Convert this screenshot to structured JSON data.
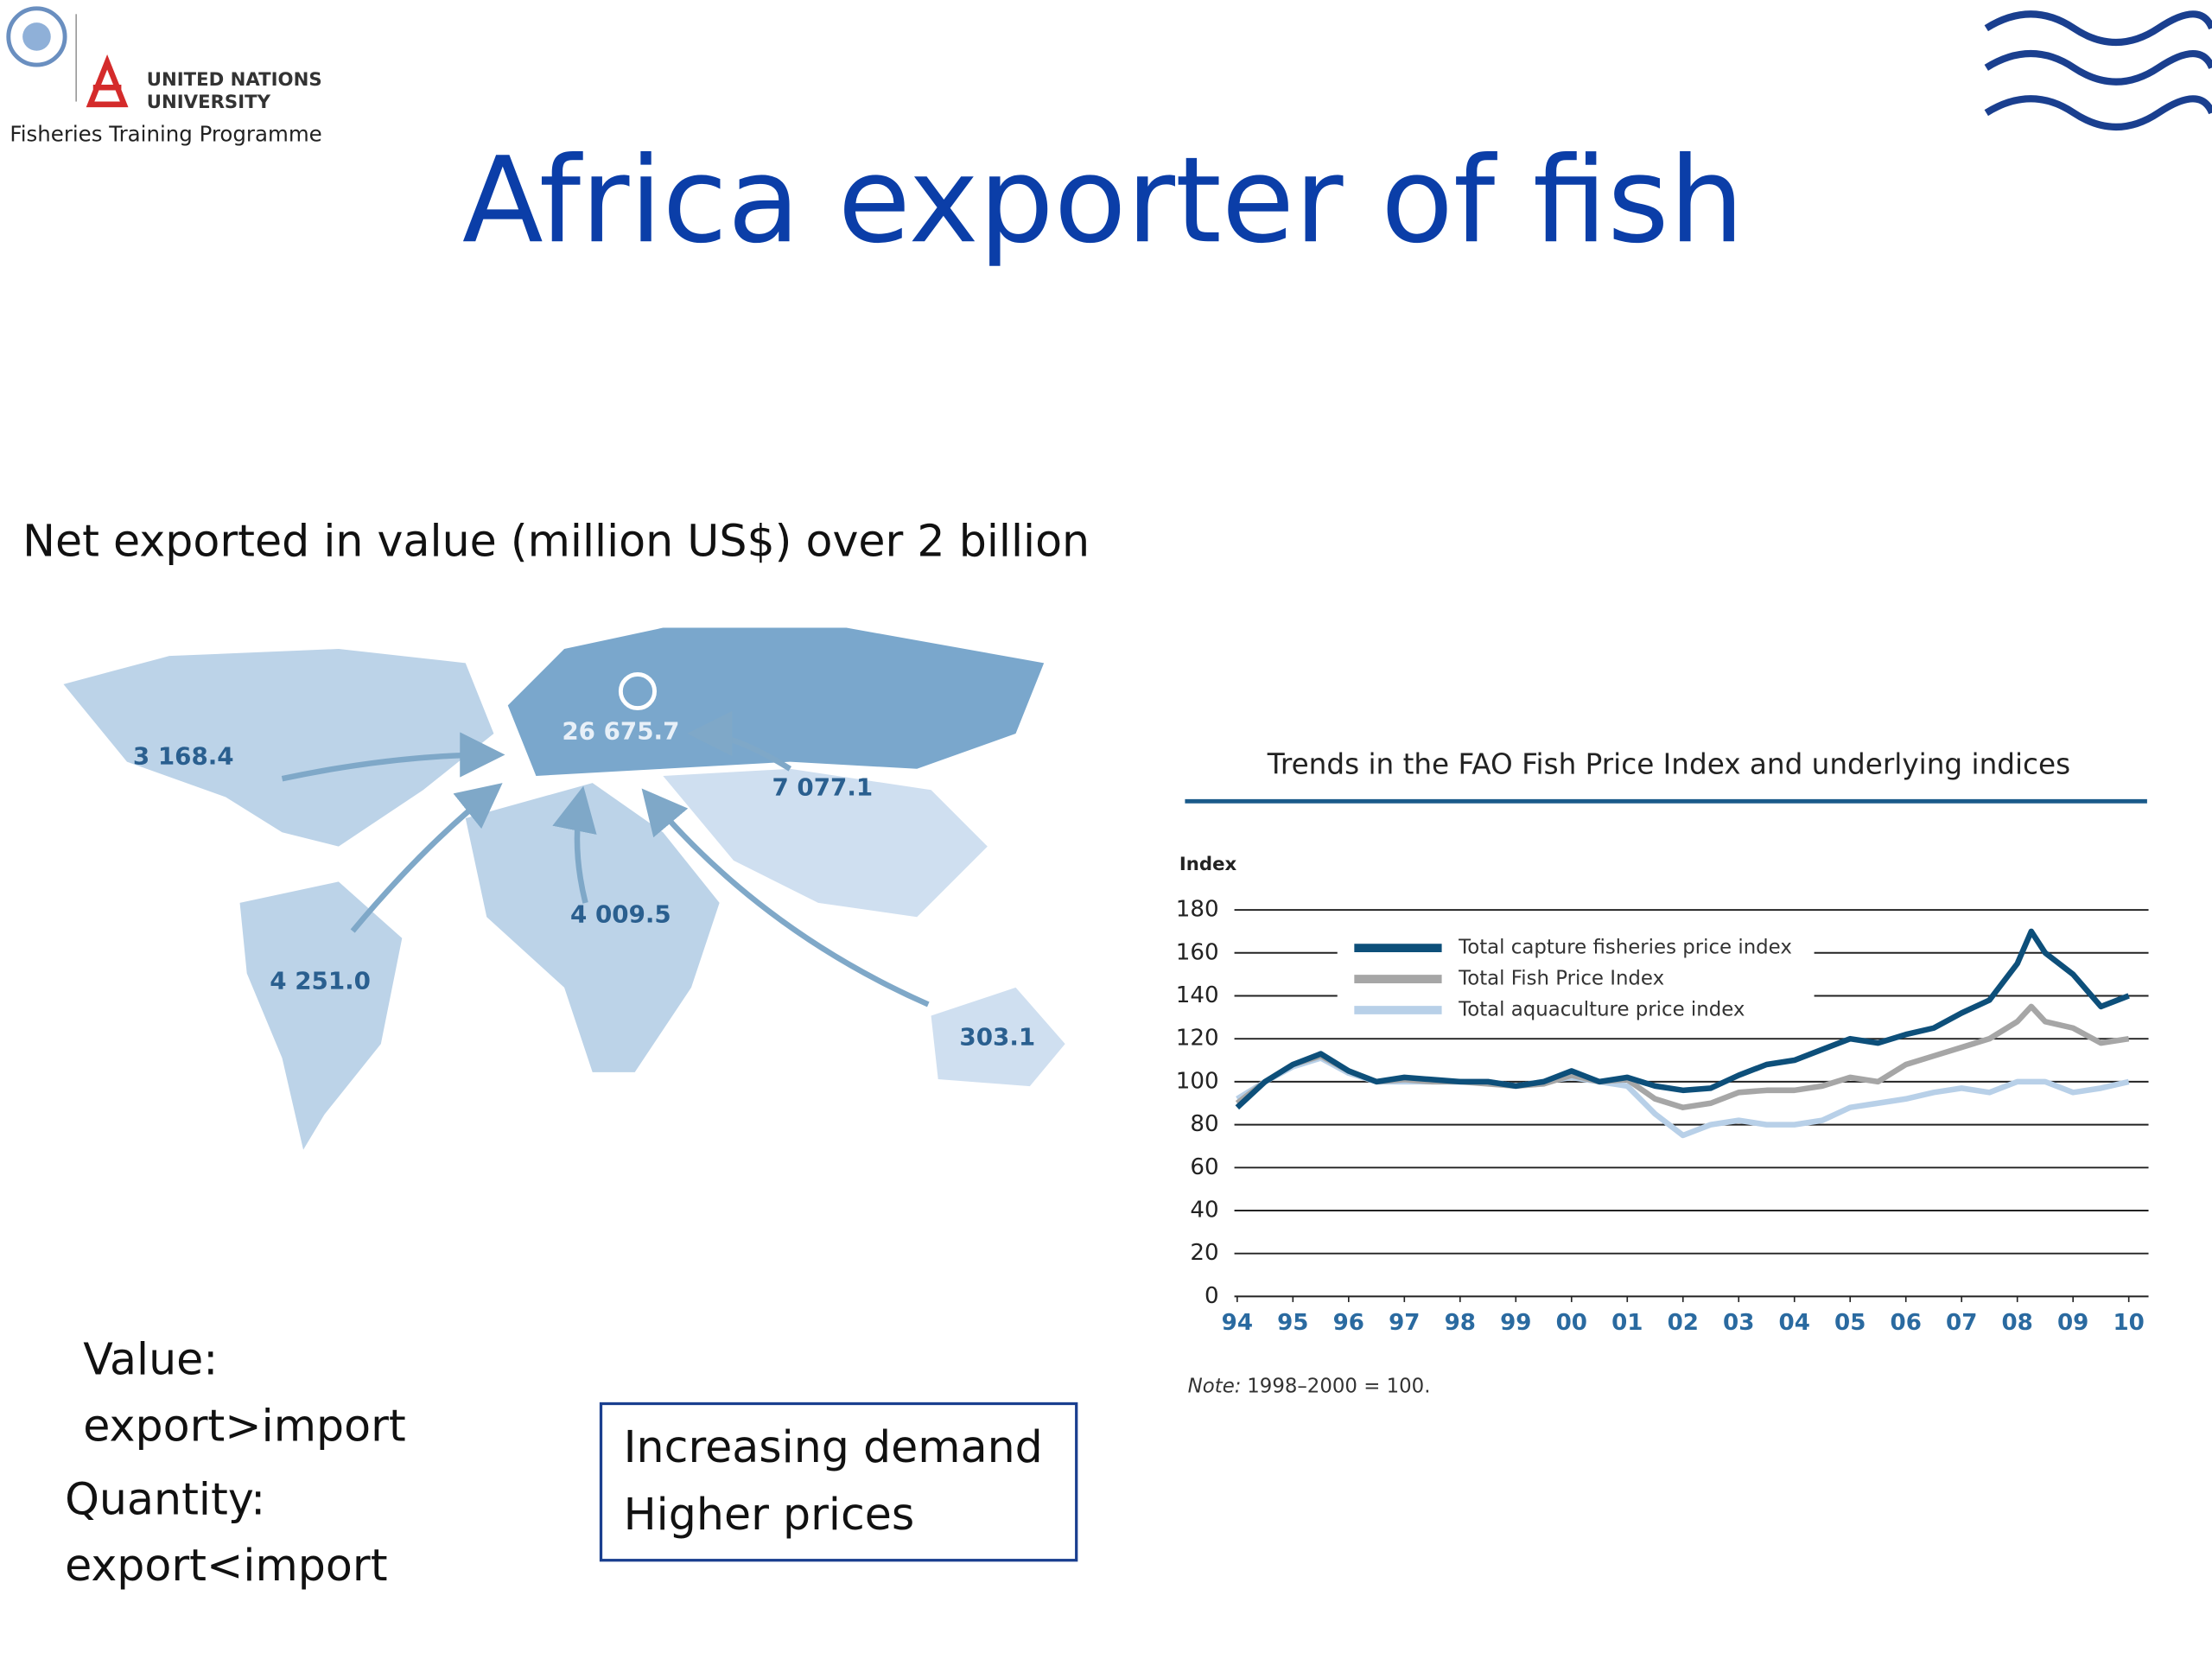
{
  "header": {
    "org_line1": "UNITED NATIONS",
    "org_line2": "UNIVERSITY",
    "programme": "Fisheries Training Programme"
  },
  "title": "Africa exporter of fish",
  "subtitle": "Net exported in value (million US$) over 2 billion",
  "map": {
    "labels": [
      "3 168.4",
      "26 675.7",
      "7 077.1",
      "4 009.5",
      "4 251.0",
      "303.1"
    ]
  },
  "notes": {
    "lines": [
      "Value:",
      "export>import",
      "Quantity:",
      "export<import"
    ]
  },
  "box": {
    "lines": [
      "Increasing demand",
      "Higher prices"
    ]
  },
  "chart_data": {
    "type": "line",
    "title": "Trends in the FAO Fish Price Index and underlying indices",
    "y_label": "Index",
    "x": [
      1994,
      1994.5,
      1995,
      1995.5,
      1996,
      1996.5,
      1997,
      1997.5,
      1998,
      1998.5,
      1999,
      1999.5,
      2000,
      2000.5,
      2001,
      2001.5,
      2002,
      2002.5,
      2003,
      2003.5,
      2004,
      2004.5,
      2005,
      2005.5,
      2006,
      2006.5,
      2007,
      2007.5,
      2008,
      2008.25,
      2008.5,
      2009,
      2009.5,
      2010
    ],
    "series": [
      {
        "name": "Total capture fisheries price index",
        "color": "#0d4f7a",
        "values": [
          88,
          100,
          108,
          113,
          105,
          100,
          102,
          101,
          100,
          100,
          98,
          100,
          105,
          100,
          102,
          98,
          96,
          97,
          103,
          108,
          110,
          115,
          120,
          118,
          122,
          125,
          132,
          138,
          155,
          170,
          160,
          150,
          135,
          140
        ]
      },
      {
        "name": "Total Fish Price Index",
        "color": "#a6a6a6",
        "values": [
          90,
          100,
          108,
          112,
          105,
          100,
          101,
          100,
          100,
          99,
          98,
          99,
          103,
          100,
          101,
          92,
          88,
          90,
          95,
          96,
          96,
          98,
          102,
          100,
          108,
          112,
          116,
          120,
          128,
          135,
          128,
          125,
          118,
          120
        ]
      },
      {
        "name": "Total aquaculture price index",
        "color": "#b8d0e8",
        "values": [
          92,
          100,
          107,
          111,
          104,
          100,
          100,
          100,
          100,
          100,
          98,
          100,
          102,
          100,
          98,
          85,
          75,
          80,
          82,
          80,
          80,
          82,
          88,
          90,
          92,
          95,
          97,
          95,
          100,
          100,
          100,
          95,
          97,
          100
        ]
      }
    ],
    "xlim": [
      1994,
      2010
    ],
    "xticks": [
      {
        "value": 1994,
        "label": "94"
      },
      {
        "value": 1995,
        "label": "95"
      },
      {
        "value": 1996,
        "label": "96"
      },
      {
        "value": 1997,
        "label": "97"
      },
      {
        "value": 1998,
        "label": "98"
      },
      {
        "value": 1999,
        "label": "99"
      },
      {
        "value": 2000,
        "label": "00"
      },
      {
        "value": 2001,
        "label": "01"
      },
      {
        "value": 2002,
        "label": "02"
      },
      {
        "value": 2003,
        "label": "03"
      },
      {
        "value": 2004,
        "label": "04"
      },
      {
        "value": 2005,
        "label": "05"
      },
      {
        "value": 2006,
        "label": "06"
      },
      {
        "value": 2007,
        "label": "07"
      },
      {
        "value": 2008,
        "label": "08"
      },
      {
        "value": 2009,
        "label": "09"
      },
      {
        "value": 2010,
        "label": "10"
      }
    ],
    "ylim": [
      0,
      180
    ],
    "yticks": [
      0,
      20,
      40,
      60,
      80,
      100,
      120,
      140,
      160,
      180
    ],
    "grid": true,
    "note_label": "Note:",
    "note": "1998–2000 = 100."
  }
}
